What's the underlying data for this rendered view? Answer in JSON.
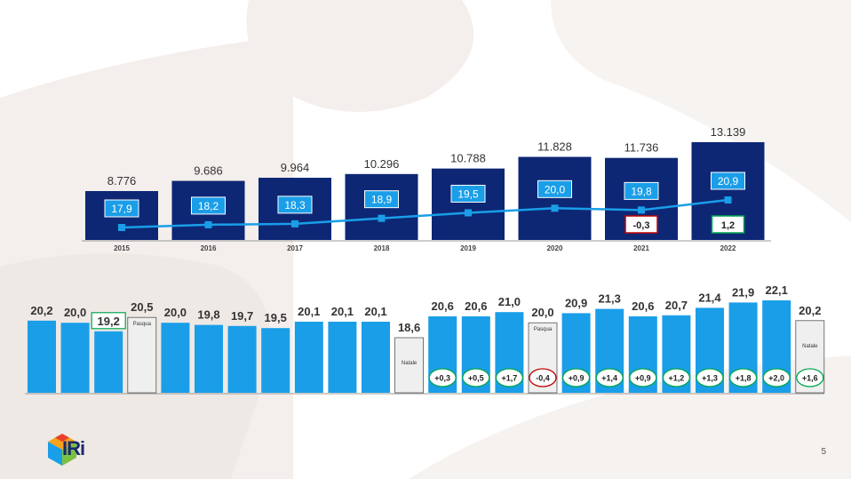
{
  "page_number": "5",
  "brand": {
    "name": "IRi"
  },
  "colors": {
    "dark_blue": "#0d2775",
    "light_blue": "#1a9ee8",
    "label_bg": "#1a9ee8",
    "line": "#1a9ee8",
    "neg_red": "#c00000",
    "pos_green": "#00a651",
    "promo_gray": "#efefef"
  },
  "chart_data": [
    {
      "type": "bar",
      "categories": [
        "2015",
        "2016",
        "2017",
        "2018",
        "2019",
        "2020",
        "2021",
        "2022"
      ],
      "series": [
        {
          "values": [
            8776,
            9686,
            9964,
            10296,
            10788,
            11828,
            11736,
            13139
          ],
          "labels": [
            "8.776",
            "9.686",
            "9.964",
            "10.296",
            "10.788",
            "11.828",
            "11.736",
            "13.139"
          ]
        },
        {
          "type": "line",
          "values": [
            17.9,
            18.2,
            18.3,
            18.9,
            19.5,
            20.0,
            19.8,
            20.9
          ],
          "labels": [
            "17,9",
            "18,2",
            "18,3",
            "18,9",
            "19,5",
            "20,0",
            "19,8",
            "20,9"
          ]
        }
      ],
      "annotations": [
        {
          "category": "2021",
          "text": "-0,3",
          "sign": "negative"
        },
        {
          "category": "2022",
          "text": "1,2",
          "sign": "positive"
        }
      ]
    },
    {
      "type": "bar",
      "values": [
        20.2,
        20.0,
        19.2,
        20.5,
        20.0,
        19.8,
        19.7,
        19.5,
        20.1,
        20.1,
        20.1,
        18.6,
        20.6,
        20.6,
        21.0,
        20.0,
        20.9,
        21.3,
        20.6,
        20.7,
        21.4,
        21.9,
        22.1,
        20.2
      ],
      "labels": [
        "20,2",
        "20,0",
        "19,2",
        "20,5",
        "20,0",
        "19,8",
        "19,7",
        "19,5",
        "20,1",
        "20,1",
        "20,1",
        "18,6",
        "20,6",
        "20,6",
        "21,0",
        "20,0",
        "20,9",
        "21,3",
        "20,6",
        "20,7",
        "21,4",
        "21,9",
        "22,1",
        "20,2"
      ],
      "highlighted_label_index": 2,
      "promo_bars": [
        {
          "index": 3,
          "text": "Pasqua"
        },
        {
          "index": 11,
          "text": "Natale"
        },
        {
          "index": 15,
          "text": "Pasqua"
        },
        {
          "index": 23,
          "text": "Natale"
        }
      ],
      "deltas": [
        {
          "index": 12,
          "text": "+0,3",
          "sign": "positive"
        },
        {
          "index": 13,
          "text": "+0,5",
          "sign": "positive"
        },
        {
          "index": 14,
          "text": "+1,7",
          "sign": "positive"
        },
        {
          "index": 15,
          "text": "-0,4",
          "sign": "negative"
        },
        {
          "index": 16,
          "text": "+0,9",
          "sign": "positive"
        },
        {
          "index": 17,
          "text": "+1,4",
          "sign": "positive"
        },
        {
          "index": 18,
          "text": "+0,9",
          "sign": "positive"
        },
        {
          "index": 19,
          "text": "+1,2",
          "sign": "positive"
        },
        {
          "index": 20,
          "text": "+1,3",
          "sign": "positive"
        },
        {
          "index": 21,
          "text": "+1,8",
          "sign": "positive"
        },
        {
          "index": 22,
          "text": "+2,0",
          "sign": "positive"
        },
        {
          "index": 23,
          "text": "+1,6",
          "sign": "positive"
        }
      ]
    }
  ]
}
